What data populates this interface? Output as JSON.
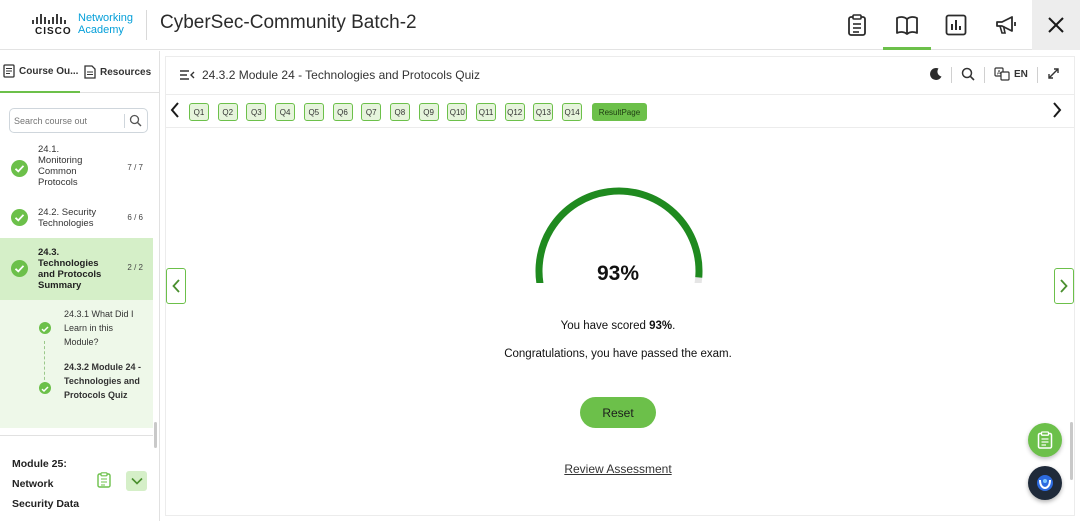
{
  "header": {
    "logo": {
      "brand": "CISCO",
      "line1": "Networking",
      "line2": "Academy"
    },
    "course_title": "CyberSec-Community Batch-2",
    "icons": [
      "clipboard-icon",
      "book-icon",
      "chart-icon",
      "megaphone-icon",
      "close-icon"
    ]
  },
  "sidebar": {
    "tabs": [
      {
        "label": "Course Ou...",
        "icon": "course-outline-icon",
        "active": true
      },
      {
        "label": "Resources",
        "icon": "resources-icon",
        "active": false
      }
    ],
    "search_placeholder": "Search course out",
    "topics": [
      {
        "label": "24.1. Monitoring Common Protocols",
        "count": "7 / 7",
        "status": "complete"
      },
      {
        "label": "24.2. Security Technologies",
        "count": "6 / 6",
        "status": "complete"
      },
      {
        "label": "24.3. Technologies and Protocols Summary",
        "count": "2 / 2",
        "status": "complete",
        "active": true
      }
    ],
    "subitems": [
      {
        "label": "24.3.1 What Did I Learn in this Module?",
        "current": false
      },
      {
        "label": "24.3.2 Module 24 - Technologies and Protocols Quiz",
        "current": true
      }
    ],
    "next_module": "Module 25: Network Security Data"
  },
  "content": {
    "page_title": "24.3.2 Module 24 - Technologies and Protocols Quiz",
    "language": "EN",
    "questions": [
      "Q1",
      "Q2",
      "Q3",
      "Q4",
      "Q5",
      "Q6",
      "Q7",
      "Q8",
      "Q9",
      "Q10",
      "Q11",
      "Q12",
      "Q13",
      "Q14"
    ],
    "result_label": "ResultPage",
    "score_percent": 93,
    "score_text": "93%",
    "scored_prefix": "You have scored ",
    "scored_value": "93%",
    "scored_suffix": ".",
    "congrats": "Congratulations, you have passed the exam.",
    "reset_label": "Reset",
    "review_label": "Review Assessment"
  },
  "colors": {
    "accent": "#6cc04a",
    "gauge_fill": "#1f8a1f",
    "gauge_track": "#e5e5e5",
    "active_row": "#d5efc8"
  }
}
